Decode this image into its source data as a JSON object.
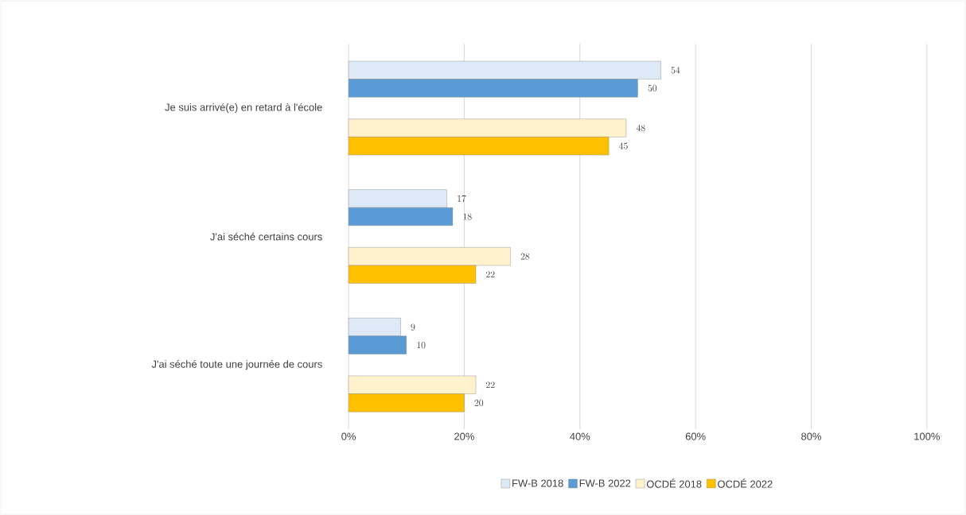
{
  "chart_data": {
    "type": "bar",
    "orientation": "horizontal",
    "categories": [
      "Je suis arrivé(e) en retard à l'école",
      "J'ai séché certains cours",
      "J'ai séché toute une journée de cours"
    ],
    "series": [
      {
        "name": "FW-B 2018",
        "color": "#dde9f6",
        "values": [
          54,
          17,
          9
        ]
      },
      {
        "name": "FW-B 2022",
        "color": "#5b9bd5",
        "values": [
          50,
          18,
          10
        ]
      },
      {
        "name": "OCDÉ 2018",
        "color": "#fff2cc",
        "values": [
          48,
          28,
          22
        ]
      },
      {
        "name": "OCDÉ 2022",
        "color": "#ffc000",
        "values": [
          45,
          22,
          20
        ]
      }
    ],
    "xlim": [
      0,
      100
    ],
    "xticks": [
      {
        "value": 0,
        "label": "0%"
      },
      {
        "value": 20,
        "label": "20%"
      },
      {
        "value": 40,
        "label": "40%"
      },
      {
        "value": 60,
        "label": "60%"
      },
      {
        "value": 80,
        "label": "80%"
      },
      {
        "value": 100,
        "label": "100%"
      }
    ],
    "grid": "x",
    "legend": "bottom",
    "data_labels": true
  }
}
